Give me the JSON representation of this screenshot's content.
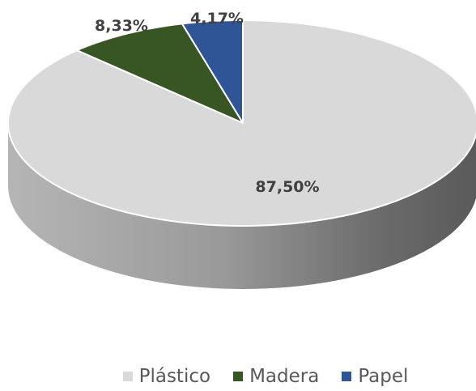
{
  "chart_data": {
    "type": "pie",
    "variant": "3d",
    "title": "",
    "categories": [
      "Plástico",
      "Madera",
      "Papel"
    ],
    "values": [
      87.5,
      8.33,
      4.17
    ],
    "data_labels": [
      "87,50%",
      "8,33%",
      "4,17%"
    ],
    "colors": [
      "#d9d9d9",
      "#375623",
      "#2f5597"
    ],
    "side_colors": [
      "#8c8c8c",
      "#243a17",
      "#1f3a66"
    ],
    "legend_position": "bottom",
    "legend": [
      {
        "label": "Plástico",
        "color": "#d9d9d9"
      },
      {
        "label": "Madera",
        "color": "#375623"
      },
      {
        "label": "Papel",
        "color": "#2f5597"
      }
    ]
  }
}
